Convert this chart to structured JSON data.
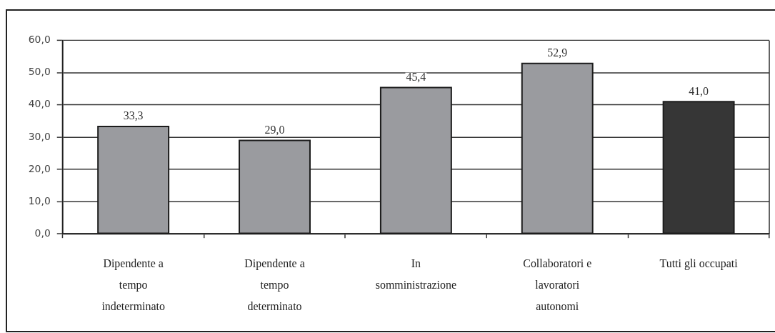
{
  "chart_data": {
    "type": "bar",
    "categories": [
      "Dipendente a tempo indeterminato",
      "Dipendente a tempo determinato",
      "In somministrazione",
      "Collaboratori e lavoratori autonomi",
      "Tutti gli occupati"
    ],
    "values": [
      33.3,
      29.0,
      45.4,
      52.9,
      41.0
    ],
    "colors": [
      "#9a9b9f",
      "#9a9b9f",
      "#9a9b9f",
      "#9a9b9f",
      "#363636"
    ],
    "value_labels": [
      "33,3",
      "29,0",
      "45,4",
      "52,9",
      "41,0"
    ],
    "ylim": [
      0,
      60
    ],
    "yticks": [
      {
        "value": 0,
        "label": "0,0"
      },
      {
        "value": 10,
        "label": "10,0"
      },
      {
        "value": 20,
        "label": "20,0"
      },
      {
        "value": 30,
        "label": "30,0"
      },
      {
        "value": 40,
        "label": "40,0"
      },
      {
        "value": 50,
        "label": "50,0"
      },
      {
        "value": 60,
        "label": "60,0"
      }
    ],
    "grid": "y"
  }
}
